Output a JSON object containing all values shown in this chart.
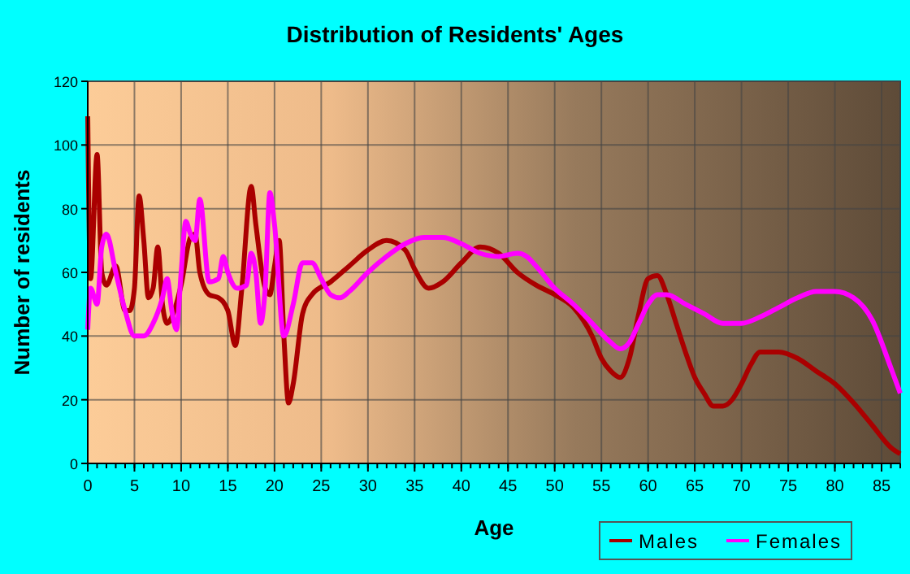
{
  "chart_data": {
    "type": "line",
    "title": "Distribution of Residents' Ages",
    "xlabel": "Age",
    "ylabel": "Number of residents",
    "xlim": [
      0,
      87
    ],
    "xticks": [
      0,
      5,
      10,
      15,
      20,
      25,
      30,
      35,
      40,
      45,
      50,
      55,
      60,
      65,
      70,
      75,
      80,
      85
    ],
    "ylim": [
      0,
      120
    ],
    "yticks": [
      0,
      20,
      40,
      60,
      80,
      100,
      120
    ],
    "grid": true,
    "legend": "bottom right",
    "series": [
      {
        "name": "Males",
        "color": "#aa0000",
        "x": [
          0,
          0.3,
          1,
          1.5,
          2,
          3,
          4,
          4.5,
          5,
          5.5,
          6,
          6.5,
          7,
          7.5,
          8,
          8.5,
          9,
          10,
          11,
          11.5,
          12,
          13,
          14,
          15,
          15.8,
          16.5,
          17.5,
          18,
          19,
          19.5,
          20,
          20.5,
          21,
          21.5,
          22,
          23,
          24,
          26,
          28,
          30,
          32,
          34,
          35,
          36.5,
          38,
          40,
          42,
          44,
          46,
          48,
          50,
          52,
          54,
          55,
          56,
          57,
          58,
          59,
          60,
          61,
          62,
          63,
          64,
          65,
          66,
          67,
          68,
          69,
          70,
          71,
          72,
          74,
          76,
          78,
          80,
          82,
          84,
          86,
          87
        ],
        "values": [
          109,
          58,
          97,
          60,
          56,
          62,
          48,
          48,
          55,
          84,
          70,
          52,
          55,
          68,
          50,
          44,
          46,
          56,
          71,
          72,
          60,
          53,
          52,
          48,
          37,
          55,
          87,
          75,
          55,
          53,
          62,
          70,
          40,
          19,
          25,
          47,
          53,
          57,
          62,
          67,
          70,
          67,
          61,
          55,
          57,
          63,
          68,
          66,
          60,
          56,
          53,
          49,
          40,
          33,
          29,
          27,
          33,
          47,
          58,
          59,
          53,
          44,
          35,
          27,
          22,
          18,
          18,
          20,
          25,
          31,
          35,
          35,
          33,
          29,
          25,
          19,
          12,
          5,
          3
        ]
      },
      {
        "name": "Females",
        "color": "#ff00ff",
        "x": [
          0,
          0.3,
          1,
          1.5,
          2,
          3,
          4,
          5,
          6,
          7,
          8,
          8.5,
          9,
          9.5,
          10,
          10.5,
          11,
          11.5,
          12,
          13,
          14,
          14.5,
          15,
          16,
          17,
          17.5,
          18,
          18.5,
          19,
          19.5,
          20,
          21,
          22,
          23,
          24,
          25,
          26,
          27,
          28,
          30,
          32,
          34,
          36,
          38,
          40,
          42,
          44,
          46,
          47,
          48,
          50,
          52,
          54,
          56,
          57,
          58,
          59,
          60,
          61,
          62,
          64,
          66,
          68,
          70,
          72,
          74,
          76,
          78,
          80,
          82,
          84,
          86,
          87
        ],
        "values": [
          42,
          55,
          50,
          68,
          72,
          60,
          48,
          40,
          40,
          44,
          52,
          58,
          48,
          42,
          60,
          76,
          72,
          70,
          83,
          57,
          58,
          65,
          60,
          55,
          56,
          66,
          60,
          44,
          55,
          85,
          75,
          40,
          50,
          63,
          63,
          58,
          53,
          52,
          54,
          60,
          65,
          69,
          71,
          71,
          69,
          66,
          65,
          66,
          65,
          62,
          55,
          50,
          44,
          38,
          36,
          38,
          44,
          50,
          53,
          53,
          50,
          47,
          44,
          44,
          46,
          49,
          52,
          54,
          54,
          52,
          45,
          30,
          22
        ]
      }
    ]
  }
}
